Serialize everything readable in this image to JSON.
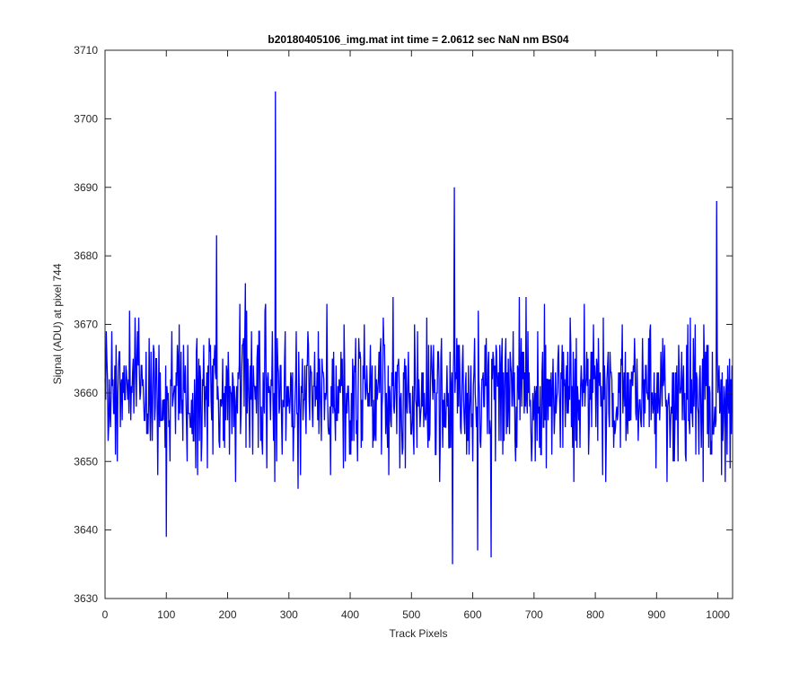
{
  "chart_data": {
    "type": "line",
    "title": "b20180405106_img.mat int time = 2.0612 sec  NaN nm BS04",
    "xlabel": "Track Pixels",
    "ylabel": "Signal (ADU) at pixel 744",
    "xlim": [
      0,
      1024
    ],
    "ylim": [
      3630,
      3710
    ],
    "x_ticks": [
      0,
      100,
      200,
      300,
      400,
      500,
      600,
      700,
      800,
      900,
      1000
    ],
    "y_ticks": [
      3630,
      3640,
      3650,
      3660,
      3670,
      3680,
      3690,
      3700,
      3710
    ],
    "grid": false,
    "series_color": "#0000ff",
    "series": [
      {
        "point_count": 1024,
        "mean": 3660,
        "noise_amplitude": 6,
        "y_min": 3635,
        "y_max": 3704,
        "notable_points": [
          {
            "x": 278,
            "y": 3704
          },
          {
            "x": 570,
            "y": 3690
          },
          {
            "x": 998,
            "y": 3688
          },
          {
            "x": 182,
            "y": 3683
          },
          {
            "x": 567,
            "y": 3635
          },
          {
            "x": 630,
            "y": 3636
          },
          {
            "x": 100,
            "y": 3639
          },
          {
            "x": 608,
            "y": 3637
          }
        ]
      }
    ]
  }
}
